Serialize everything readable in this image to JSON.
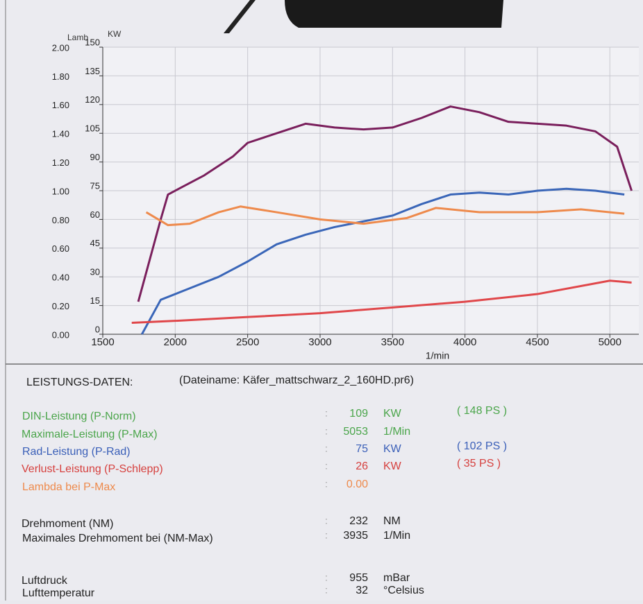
{
  "chart_data": {
    "type": "line",
    "x_label": "1/min",
    "y_label": "KW",
    "y2_label": "Lamb",
    "xlim": [
      1500,
      5200
    ],
    "xticks": [
      1500,
      2000,
      2500,
      3000,
      3500,
      4000,
      4500,
      5000
    ],
    "ylim": [
      0,
      150
    ],
    "yticks": [
      0,
      15,
      30,
      45,
      60,
      75,
      90,
      105,
      120,
      135,
      150
    ],
    "y2lim": [
      0,
      2
    ],
    "y2ticks": [
      {
        "value": 0,
        "label": "0.00"
      },
      {
        "value": 0.2,
        "label": "0.20"
      },
      {
        "value": 0.4,
        "label": "0.40"
      },
      {
        "value": 0.6,
        "label": "0.60"
      },
      {
        "value": 0.8,
        "label": "0.80"
      },
      {
        "value": 1,
        "label": "1.00"
      },
      {
        "value": 1.2,
        "label": "1.20"
      },
      {
        "value": 1.4,
        "label": "1.40"
      },
      {
        "value": 1.6,
        "label": "1.60"
      },
      {
        "value": 1.8,
        "label": "1.80"
      },
      {
        "value": 2,
        "label": "2.00"
      }
    ],
    "grid": true,
    "series": [
      {
        "color": "#7a1f5c",
        "x": [
          1745,
          1900,
          1950,
          2050,
          2200,
          2400,
          2500,
          2700,
          2900,
          3100,
          3300,
          3500,
          3700,
          3900,
          4100,
          4300,
          4500,
          4700,
          4900,
          5050,
          5150
        ],
        "values": [
          17,
          60,
          73,
          77,
          83,
          93,
          100,
          105,
          110,
          108,
          107,
          108,
          113,
          119,
          116,
          111,
          110,
          109,
          106,
          98,
          75
        ]
      },
      {
        "color": "#3a66b8",
        "x": [
          1770,
          1900,
          2100,
          2300,
          2500,
          2700,
          2900,
          3100,
          3300,
          3500,
          3700,
          3900,
          4100,
          4300,
          4500,
          4700,
          4900,
          5100
        ],
        "values": [
          0,
          18,
          24,
          30,
          38,
          47,
          52,
          56,
          59,
          62,
          68,
          73,
          74,
          73,
          75,
          76,
          75,
          73
        ]
      },
      {
        "color": "#e0474a",
        "x": [
          1700,
          2000,
          2500,
          3000,
          3500,
          4000,
          4500,
          5000,
          5150
        ],
        "values": [
          6,
          7,
          9,
          11,
          14,
          17,
          21,
          28,
          27
        ]
      },
      {
        "color": "#ee8a4c",
        "axis": "y2",
        "x": [
          1800,
          1950,
          2100,
          2300,
          2450,
          2700,
          3000,
          3300,
          3600,
          3800,
          4100,
          4500,
          4800,
          5100
        ],
        "values": [
          0.85,
          0.76,
          0.77,
          0.85,
          0.89,
          0.85,
          0.8,
          0.77,
          0.81,
          0.88,
          0.85,
          0.85,
          0.87,
          0.84
        ]
      }
    ]
  },
  "data_table": {
    "title": "LEISTUNGS-DATEN:",
    "filename": "(Dateiname: Käfer_mattschwarz_2_160HD.pr6)",
    "rows": [
      {
        "label": "DIN-Leistung (P-Norm)",
        "value": "109",
        "unit": "KW",
        "extra": "( 148 PS )",
        "color": "#4aa54a"
      },
      {
        "label": "Maximale-Leistung (P-Max)",
        "value": "5053",
        "unit": "1/Min",
        "color": "#4aa54a"
      },
      {
        "label": "Rad-Leistung (P-Rad)",
        "value": "75",
        "unit": "KW",
        "extra": "( 102 PS )",
        "color": "#3a5fb8"
      },
      {
        "label": "Verlust-Leistung (P-Schlepp)",
        "value": "26",
        "unit": "KW",
        "extra": "( 35 PS )",
        "color": "#d6403e"
      },
      {
        "label": "Lambda bei P-Max",
        "value": "0.00",
        "color": "#ee8a4c"
      },
      {
        "label": "Drehmoment (NM)",
        "value": "232",
        "unit": "NM",
        "color": "#222222"
      },
      {
        "label": "Maximales Drehmoment bei (NM-Max)",
        "value": "3935",
        "unit": "1/Min",
        "color": "#222222"
      },
      {
        "label": "Luftdruck",
        "value": "955",
        "unit": "mBar",
        "color": "#222222"
      },
      {
        "label": "Lufttemperatur",
        "value": "32",
        "unit": "°Celsius",
        "color": "#222222"
      }
    ]
  }
}
